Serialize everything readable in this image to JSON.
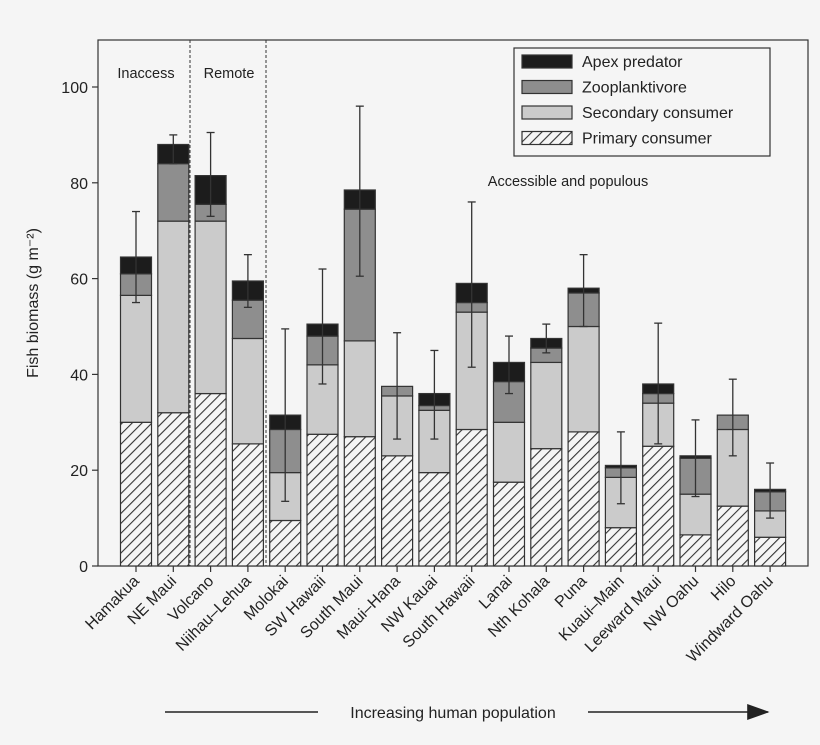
{
  "chart_data": {
    "type": "bar",
    "stacked": true,
    "ylabel": "Fish biomass (g m⁻²)",
    "xlabel": "Increasing human population",
    "ylim": [
      0,
      110
    ],
    "yticks": [
      0,
      20,
      40,
      60,
      80,
      100
    ],
    "grid": false,
    "legend_position": "top-right",
    "categories": [
      "Hamakua",
      "NE Maui",
      "Volcano",
      "Niihau–Lehua",
      "Molokai",
      "SW Hawaii",
      "South Maui",
      "Maui–Hana",
      "NW Kauai",
      "South Hawaii",
      "Lanai",
      "Nth Kohala",
      "Puna",
      "Kuaui–Main",
      "Leeward Maui",
      "NW Oahu",
      "Hilo",
      "Windward Oahu"
    ],
    "series": [
      {
        "name": "Primary consumer",
        "fill": "hatch",
        "values": [
          30,
          32,
          36,
          25.5,
          9.5,
          27.5,
          27,
          23,
          19.5,
          28.5,
          17.5,
          24.5,
          28,
          8,
          25,
          6.5,
          12.5,
          6
        ]
      },
      {
        "name": "Secondary consumer",
        "color": "#cbcbcb",
        "values": [
          26.5,
          40,
          36,
          22,
          10,
          14.5,
          20,
          12.5,
          13,
          24.5,
          12.5,
          18,
          22,
          10.5,
          9,
          8.5,
          16,
          5.5
        ]
      },
      {
        "name": "Zooplanktivore",
        "color": "#8e8e8e",
        "values": [
          4.5,
          12,
          3.5,
          8,
          9,
          6,
          27.5,
          2,
          1,
          2,
          8.5,
          3,
          7,
          2,
          2,
          7.5,
          3,
          4
        ]
      },
      {
        "name": "Apex predator",
        "color": "#1c1c1c",
        "values": [
          3.5,
          4,
          6,
          4,
          3,
          2.5,
          4,
          0,
          2.5,
          4,
          4,
          2,
          1,
          0.5,
          2,
          0.5,
          0,
          0.5
        ]
      }
    ],
    "error_bars": [
      [
        55,
        74
      ],
      [
        84,
        90
      ],
      [
        73,
        90.5
      ],
      [
        54,
        65
      ],
      [
        13.5,
        49.5
      ],
      [
        38,
        62
      ],
      [
        60.5,
        96
      ],
      [
        26.5,
        48.7
      ],
      [
        26.5,
        45
      ],
      [
        41.5,
        76
      ],
      [
        36,
        48
      ],
      [
        44.5,
        50.5
      ],
      [
        50,
        65
      ],
      [
        13,
        28
      ],
      [
        25.5,
        50.7
      ],
      [
        14.5,
        30.5
      ],
      [
        23,
        39
      ],
      [
        10,
        21.5
      ]
    ],
    "groups": [
      {
        "label": "Inaccess",
        "first": 0,
        "last": 1
      },
      {
        "label": "Remote",
        "first": 2,
        "last": 3
      },
      {
        "label": "Accessible and populous",
        "first": 4,
        "last": 17
      }
    ]
  }
}
